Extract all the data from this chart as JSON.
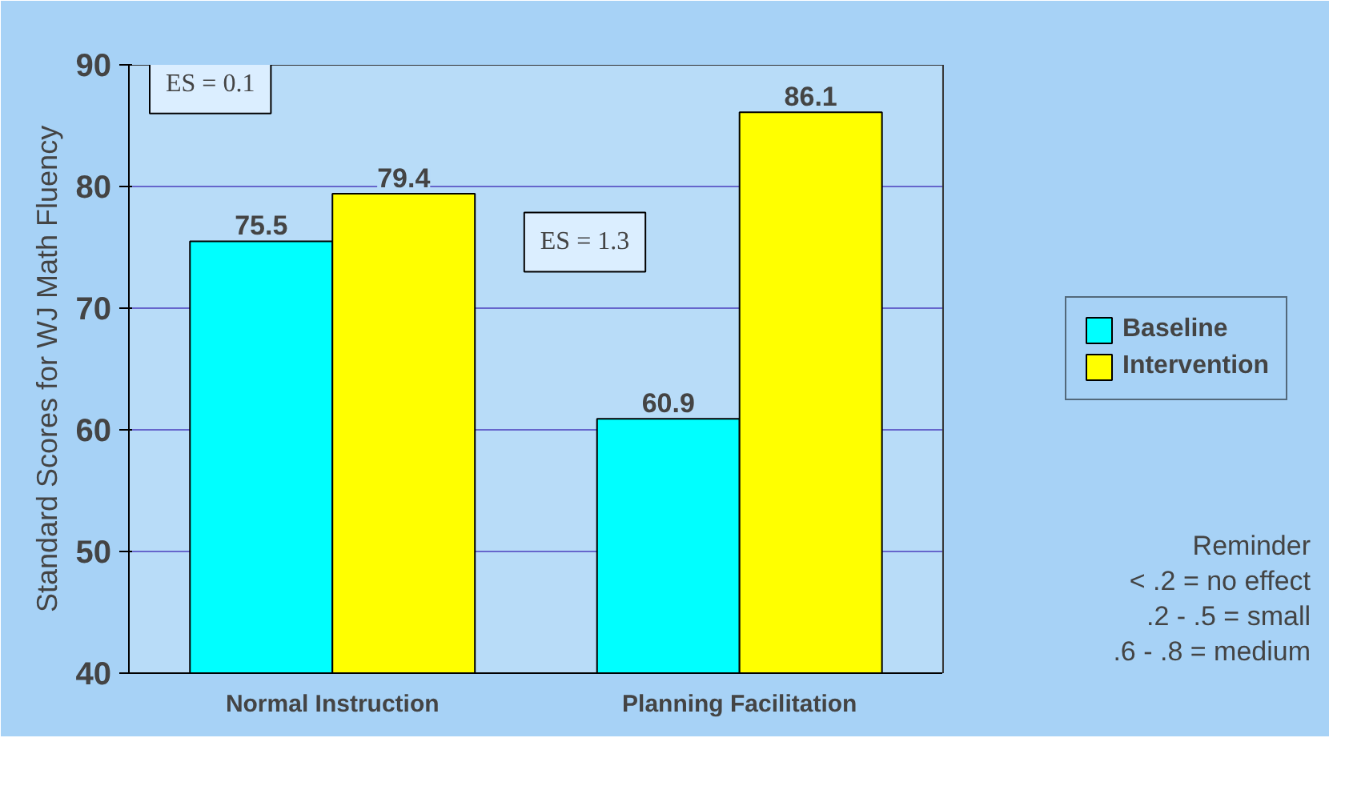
{
  "chart_data": {
    "type": "bar",
    "ylabel": "Standard Scores for WJ Math Fluency",
    "categories": [
      "Normal Instruction",
      "Planning Facilitation"
    ],
    "series": [
      {
        "name": "Baseline",
        "color": "#00ffff",
        "values": [
          75.5,
          60.9
        ]
      },
      {
        "name": "Intervention",
        "color": "#ffff00",
        "values": [
          79.4,
          86.1
        ]
      }
    ],
    "ylim": [
      40,
      90
    ],
    "yticks": [
      40,
      50,
      60,
      70,
      80,
      90
    ],
    "grid": "y",
    "legend": "right",
    "data_labels": true,
    "annotations": [
      "ES = 0.1",
      "ES = 1.3",
      "Reminder",
      "< .2 = no effect",
      ".2 - .5 = small",
      ".6 - .8 = medium"
    ]
  }
}
